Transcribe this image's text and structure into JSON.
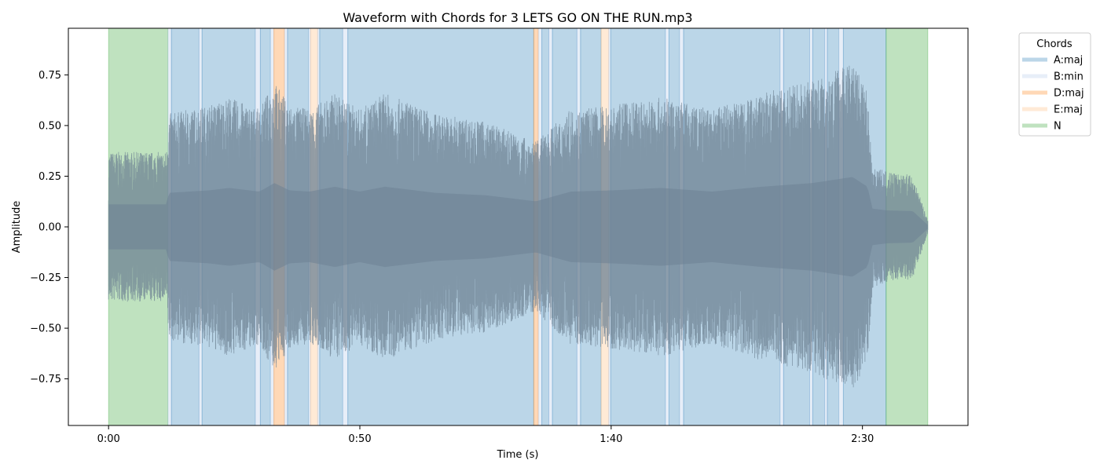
{
  "chart_data": {
    "type": "area",
    "title": "Waveform with Chords for 3 LETS GO ON THE RUN.mp3",
    "xlabel": "Time (s)",
    "ylabel": "Amplitude",
    "xlim": [
      -8,
      171
    ],
    "ylim": [
      -0.98,
      0.98
    ],
    "x_ticks": [
      {
        "value": 0,
        "label": "0:00"
      },
      {
        "value": 50,
        "label": "0:50"
      },
      {
        "value": 100,
        "label": "1:40"
      },
      {
        "value": 150,
        "label": "2:30"
      }
    ],
    "y_ticks": [
      {
        "value": 0.75,
        "label": "0.75"
      },
      {
        "value": 0.5,
        "label": "0.50"
      },
      {
        "value": 0.25,
        "label": "0.25"
      },
      {
        "value": 0.0,
        "label": "0.00"
      },
      {
        "value": -0.25,
        "label": "−0.25"
      },
      {
        "value": -0.5,
        "label": "−0.50"
      },
      {
        "value": -0.75,
        "label": "−0.75"
      }
    ],
    "grid": false,
    "legend": {
      "title": "Chords",
      "placement": "outside-top-right",
      "entries": [
        {
          "label": "A:maj",
          "color": "#1f77b4"
        },
        {
          "label": "B:min",
          "color": "#aec7e8"
        },
        {
          "label": "D:maj",
          "color": "#ff7f0e"
        },
        {
          "label": "E:maj",
          "color": "#ffbb78"
        },
        {
          "label": "N",
          "color": "#2ca02c"
        }
      ]
    },
    "chord_segments": [
      {
        "chord": "N",
        "start": 0.0,
        "end": 11.8
      },
      {
        "chord": "B:min",
        "start": 11.8,
        "end": 12.5
      },
      {
        "chord": "A:maj",
        "start": 12.5,
        "end": 18.0
      },
      {
        "chord": "B:min",
        "start": 18.0,
        "end": 18.6
      },
      {
        "chord": "A:maj",
        "start": 18.6,
        "end": 29.2
      },
      {
        "chord": "B:min",
        "start": 29.2,
        "end": 30.2
      },
      {
        "chord": "A:maj",
        "start": 30.2,
        "end": 32.2
      },
      {
        "chord": "B:min",
        "start": 32.2,
        "end": 32.9
      },
      {
        "chord": "D:maj",
        "start": 32.9,
        "end": 35.0
      },
      {
        "chord": "B:min",
        "start": 35.0,
        "end": 35.6
      },
      {
        "chord": "A:maj",
        "start": 35.6,
        "end": 39.8
      },
      {
        "chord": "B:min",
        "start": 39.8,
        "end": 40.2
      },
      {
        "chord": "E:maj",
        "start": 40.2,
        "end": 41.6
      },
      {
        "chord": "B:min",
        "start": 41.6,
        "end": 42.0
      },
      {
        "chord": "A:maj",
        "start": 42.0,
        "end": 46.6
      },
      {
        "chord": "B:min",
        "start": 46.6,
        "end": 47.6
      },
      {
        "chord": "A:maj",
        "start": 47.6,
        "end": 84.6
      },
      {
        "chord": "D:maj",
        "start": 84.6,
        "end": 85.5
      },
      {
        "chord": "B:min",
        "start": 85.5,
        "end": 86.2
      },
      {
        "chord": "A:maj",
        "start": 86.2,
        "end": 87.6
      },
      {
        "chord": "B:min",
        "start": 87.6,
        "end": 88.3
      },
      {
        "chord": "A:maj",
        "start": 88.3,
        "end": 93.2
      },
      {
        "chord": "B:min",
        "start": 93.2,
        "end": 93.9
      },
      {
        "chord": "A:maj",
        "start": 93.9,
        "end": 98.0
      },
      {
        "chord": "E:maj",
        "start": 98.0,
        "end": 99.5
      },
      {
        "chord": "B:min",
        "start": 99.5,
        "end": 99.9
      },
      {
        "chord": "A:maj",
        "start": 99.9,
        "end": 110.8
      },
      {
        "chord": "B:min",
        "start": 110.8,
        "end": 111.5
      },
      {
        "chord": "A:maj",
        "start": 111.5,
        "end": 113.6
      },
      {
        "chord": "B:min",
        "start": 113.6,
        "end": 114.4
      },
      {
        "chord": "A:maj",
        "start": 114.4,
        "end": 133.6
      },
      {
        "chord": "B:min",
        "start": 133.6,
        "end": 134.3
      },
      {
        "chord": "A:maj",
        "start": 134.3,
        "end": 139.5
      },
      {
        "chord": "B:min",
        "start": 139.5,
        "end": 140.1
      },
      {
        "chord": "A:maj",
        "start": 140.1,
        "end": 142.5
      },
      {
        "chord": "B:min",
        "start": 142.5,
        "end": 143.0
      },
      {
        "chord": "A:maj",
        "start": 143.0,
        "end": 145.3
      },
      {
        "chord": "B:min",
        "start": 145.3,
        "end": 146.2
      },
      {
        "chord": "A:maj",
        "start": 146.2,
        "end": 154.7
      },
      {
        "chord": "N",
        "start": 154.7,
        "end": 163.0
      }
    ],
    "waveform": {
      "color": "#6e8193",
      "duration": 163.0,
      "envelope": [
        {
          "t": 0.0,
          "peak": 0.37
        },
        {
          "t": 11.5,
          "peak": 0.37
        },
        {
          "t": 12.0,
          "peak": 0.56
        },
        {
          "t": 20.0,
          "peak": 0.6
        },
        {
          "t": 24.0,
          "peak": 0.64
        },
        {
          "t": 30.0,
          "peak": 0.58
        },
        {
          "t": 33.0,
          "peak": 0.72
        },
        {
          "t": 36.0,
          "peak": 0.6
        },
        {
          "t": 40.0,
          "peak": 0.58
        },
        {
          "t": 45.0,
          "peak": 0.66
        },
        {
          "t": 50.0,
          "peak": 0.58
        },
        {
          "t": 55.0,
          "peak": 0.66
        },
        {
          "t": 65.0,
          "peak": 0.56
        },
        {
          "t": 75.0,
          "peak": 0.52
        },
        {
          "t": 85.0,
          "peak": 0.42
        },
        {
          "t": 92.0,
          "peak": 0.58
        },
        {
          "t": 100.0,
          "peak": 0.6
        },
        {
          "t": 110.0,
          "peak": 0.64
        },
        {
          "t": 120.0,
          "peak": 0.58
        },
        {
          "t": 130.0,
          "peak": 0.66
        },
        {
          "t": 140.0,
          "peak": 0.72
        },
        {
          "t": 148.0,
          "peak": 0.82
        },
        {
          "t": 151.0,
          "peak": 0.66
        },
        {
          "t": 152.0,
          "peak": 0.3
        },
        {
          "t": 155.0,
          "peak": 0.27
        },
        {
          "t": 160.0,
          "peak": 0.26
        },
        {
          "t": 163.0,
          "peak": 0.03
        }
      ]
    }
  }
}
